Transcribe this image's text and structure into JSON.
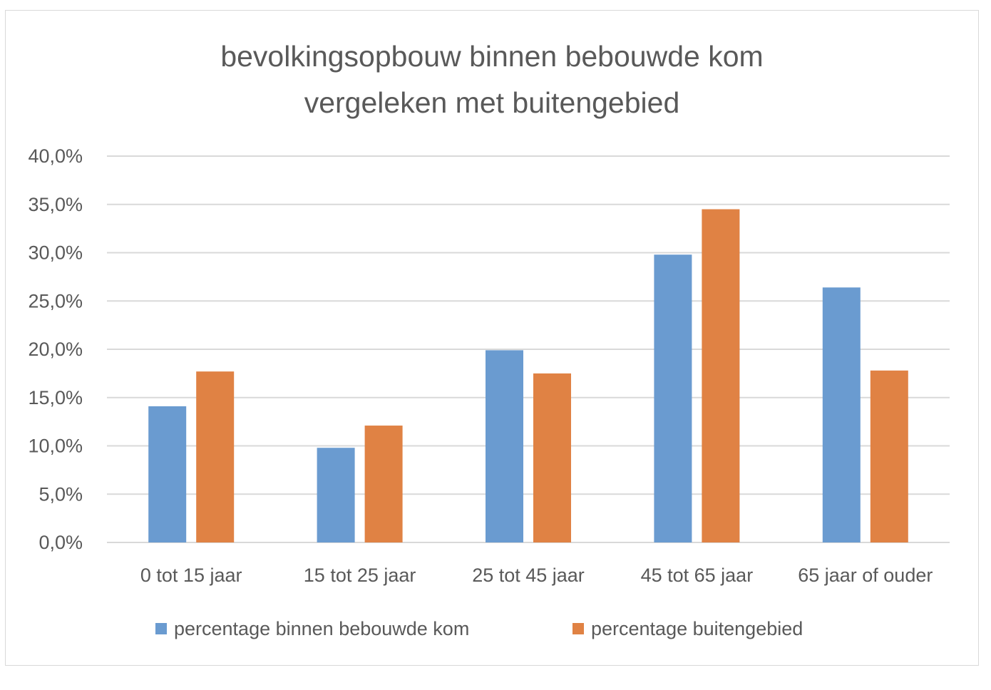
{
  "chart_data": {
    "type": "bar",
    "title": [
      "bevolkingsopbouw binnen bebouwde kom",
      "vergeleken met buitengebied"
    ],
    "categories": [
      "0 tot 15 jaar",
      "15 tot 25 jaar",
      "25 tot 45 jaar",
      "45 tot 65 jaar",
      "65 jaar of ouder"
    ],
    "series": [
      {
        "name": "percentage binnen bebouwde kom",
        "color": "#6a9bd0",
        "values": [
          14.1,
          9.8,
          19.9,
          29.8,
          26.4
        ]
      },
      {
        "name": "percentage buitengebied",
        "color": "#e08244",
        "values": [
          17.7,
          12.1,
          17.5,
          34.5,
          17.8
        ]
      }
    ],
    "y_ticks": [
      "0,0%",
      "5,0%",
      "10,0%",
      "15,0%",
      "20,0%",
      "25,0%",
      "30,0%",
      "35,0%",
      "40,0%"
    ],
    "ylim": [
      0,
      40
    ],
    "y_step": 5,
    "grid": true,
    "legend_position": "bottom",
    "colors": {
      "gridline": "#d9d9d9",
      "text": "#595959",
      "border": "#d9d9d9"
    }
  }
}
